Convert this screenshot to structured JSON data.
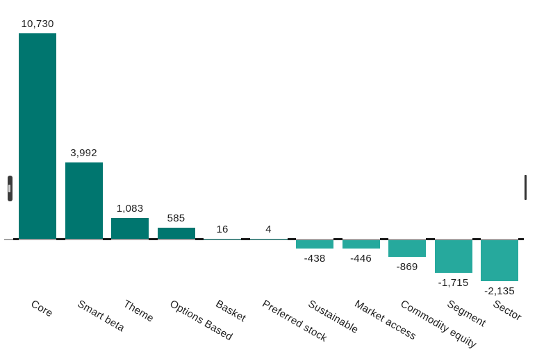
{
  "chart_data": {
    "type": "bar",
    "title": "",
    "xlabel": "",
    "ylabel": "",
    "categories": [
      "Core",
      "Smart beta",
      "Theme",
      "Options Based",
      "Basket",
      "Preferred stock",
      "Sustainable",
      "Market access",
      "Commodity equity",
      "Segment",
      "Sector"
    ],
    "values": [
      10730,
      3992,
      1083,
      585,
      16,
      4,
      -438,
      -446,
      -869,
      -1715,
      -2135
    ],
    "value_labels": [
      "10,730",
      "3,992",
      "1,083",
      "585",
      "16",
      "4",
      "-438",
      "-446",
      "-869",
      "-1,715",
      "-2,135"
    ],
    "ylim": [
      -2500,
      11000
    ],
    "grid": false,
    "legend": false,
    "category_label_rotation_deg": 30,
    "colors": {
      "bar_positive": "#00766F",
      "bar_negative": "#26A99D",
      "axis_line": "#A3A3A3",
      "axis_tick": "#1A1A1A",
      "text": "#212121",
      "handle_dark": "#3B3B3B",
      "handle_grip": "#CFCFCF"
    }
  },
  "controls": {
    "left_handle_name": "left-drag-handle",
    "right_handle_name": "right-drag-handle"
  }
}
